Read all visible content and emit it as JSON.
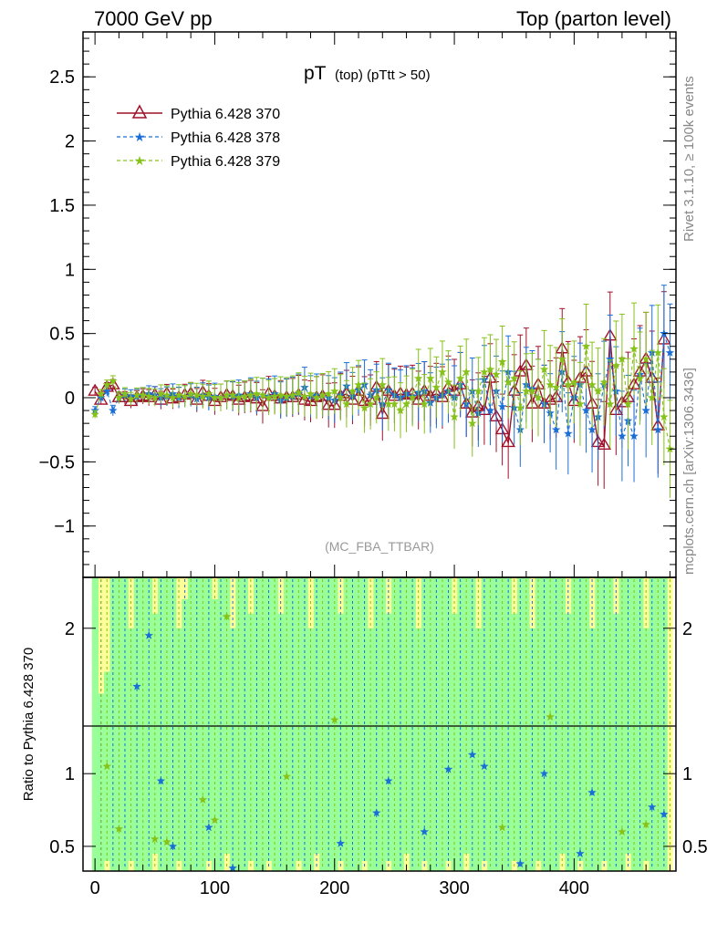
{
  "header": {
    "left": "7000 GeV pp",
    "right": "Top (parton level)"
  },
  "side_labels": {
    "upper": "Rivet 3.1.10, ≥ 100k events",
    "lower": "mcplots.cern.ch [arXiv:1306.3436]"
  },
  "chart_data": [
    {
      "type": "line",
      "panel": "main",
      "title_main": "pT",
      "title_small": "(top) (pTtt > 50)",
      "watermark": "(MC_FBA_TTBAR)",
      "ylim": [
        -1.4,
        2.85
      ],
      "xlim": [
        -10,
        485
      ],
      "yticks": [
        -1,
        -0.5,
        0,
        0.5,
        1,
        1.5,
        2,
        2.5
      ],
      "ytick_labels": [
        "−1",
        "−0.5",
        "0",
        "0.5",
        "1",
        "1.5",
        "2",
        "2.5"
      ],
      "grid": false,
      "legend_position": "top-left",
      "series": [
        {
          "name": "Pythia 6.428 370",
          "color": "#a0102a",
          "marker": "open-triangle",
          "line": "solid",
          "x": [
            0,
            5,
            10,
            15,
            20,
            25,
            30,
            35,
            40,
            45,
            50,
            55,
            60,
            65,
            70,
            75,
            80,
            85,
            90,
            95,
            100,
            105,
            110,
            115,
            120,
            125,
            130,
            135,
            140,
            145,
            150,
            155,
            160,
            165,
            170,
            175,
            180,
            185,
            190,
            195,
            200,
            205,
            210,
            215,
            220,
            225,
            230,
            235,
            240,
            245,
            250,
            255,
            260,
            265,
            270,
            275,
            280,
            285,
            290,
            295,
            300,
            305,
            310,
            315,
            320,
            325,
            330,
            335,
            340,
            345,
            350,
            355,
            360,
            365,
            370,
            375,
            380,
            385,
            390,
            395,
            400,
            405,
            410,
            415,
            420,
            425,
            430,
            435,
            440,
            445,
            450,
            455,
            460,
            465,
            470,
            475
          ],
          "y": [
            0.05,
            -0.02,
            0.08,
            0.1,
            0,
            0,
            -0.03,
            0,
            0.01,
            0,
            0.02,
            -0.02,
            0.03,
            -0.01,
            0,
            0.02,
            0.03,
            -0.02,
            0.04,
            0.01,
            -0.03,
            0,
            0.02,
            0.01,
            -0.02,
            0,
            0.01,
            -0.01,
            -0.07,
            0.03,
            0.01,
            -0.01,
            0,
            0,
            0.02,
            -0.02,
            -0.03,
            0,
            0.01,
            -0.06,
            -0.06,
            0.01,
            0.03,
            -0.02,
            0.05,
            -0.03,
            -0.02,
            0.08,
            -0.13,
            0.05,
            0.01,
            0.03,
            0.02,
            0.03,
            -0.02,
            0.05,
            0.01,
            0.03,
            0,
            0.08,
            0.05,
            0.1,
            -0.05,
            -0.12,
            -0.07,
            -0.1,
            0.15,
            -0.15,
            -0.25,
            -0.35,
            0.05,
            0.2,
            0.25,
            -0.05,
            0.1,
            -0.05,
            -0.02,
            0,
            0.38,
            0.12,
            -0.03,
            0.15,
            0.2,
            -0.05,
            -0.35,
            -0.37,
            0.48,
            -0.1,
            -0.04,
            0,
            0.1,
            0.2,
            0.3,
            0.15,
            -0.22,
            0.45
          ]
        },
        {
          "name": "Pythia 6.428 378",
          "color": "#1a6fd6",
          "marker": "star",
          "line": "dashed",
          "x": [
            0,
            5,
            10,
            15,
            20,
            25,
            30,
            35,
            40,
            45,
            50,
            55,
            60,
            65,
            70,
            75,
            80,
            85,
            90,
            95,
            100,
            105,
            110,
            115,
            120,
            125,
            130,
            135,
            140,
            145,
            150,
            155,
            160,
            165,
            170,
            175,
            180,
            185,
            190,
            195,
            200,
            205,
            210,
            215,
            220,
            225,
            230,
            235,
            240,
            245,
            250,
            255,
            260,
            265,
            270,
            275,
            280,
            285,
            290,
            295,
            300,
            305,
            310,
            315,
            320,
            325,
            330,
            335,
            340,
            345,
            350,
            355,
            360,
            365,
            370,
            375,
            380,
            385,
            390,
            395,
            400,
            405,
            410,
            415,
            420,
            425,
            430,
            435,
            440,
            445,
            450,
            455,
            460,
            465,
            470,
            475,
            480
          ],
          "y": [
            -0.1,
            0,
            0.05,
            -0.1,
            0,
            0.02,
            0.01,
            0.01,
            0.02,
            0.03,
            0.02,
            0,
            0.01,
            0.03,
            0,
            0.01,
            0.02,
            -0.01,
            0.02,
            0,
            0.01,
            0,
            0.02,
            0.01,
            0.02,
            0.01,
            0.03,
            0,
            0.02,
            0.01,
            0.03,
            -0.02,
            0,
            0.01,
            0.03,
            0.08,
            0.01,
            0.02,
            0.02,
            0,
            -0.02,
            0.02,
            0.09,
            0.01,
            0.06,
            0.1,
            0.02,
            0.06,
            -0.05,
            0.06,
            0.02,
            0,
            0.03,
            0.01,
            0.04,
            0.05,
            -0.04,
            0,
            0.02,
            0.05,
            0,
            0.1,
            -0.05,
            0.05,
            -0.12,
            0.14,
            -0.1,
            0.05,
            -0.07,
            0.2,
            -0.08,
            -0.25,
            0.1,
            0.07,
            0,
            -0.05,
            -0.12,
            -0.25,
            0.2,
            -0.28,
            0,
            0.1,
            -0.1,
            -0.25,
            -0.15,
            0.1,
            0.3,
            0.05,
            -0.3,
            -0.18,
            -0.3,
            0.18,
            -0.1,
            0.35,
            -0.25,
            0.5,
            0.35
          ]
        },
        {
          "name": "Pythia 6.428 379",
          "color": "#86c21a",
          "marker": "star",
          "line": "dashed",
          "x": [
            0,
            5,
            10,
            15,
            20,
            25,
            30,
            35,
            40,
            45,
            50,
            55,
            60,
            65,
            70,
            75,
            80,
            85,
            90,
            95,
            100,
            105,
            110,
            115,
            120,
            125,
            130,
            135,
            140,
            145,
            150,
            155,
            160,
            165,
            170,
            175,
            180,
            185,
            190,
            195,
            200,
            205,
            210,
            215,
            220,
            225,
            230,
            235,
            240,
            245,
            250,
            255,
            260,
            265,
            270,
            275,
            280,
            285,
            290,
            295,
            300,
            305,
            310,
            315,
            320,
            325,
            330,
            335,
            340,
            345,
            350,
            355,
            360,
            365,
            370,
            375,
            380,
            385,
            390,
            395,
            400,
            405,
            410,
            415,
            420,
            425,
            430,
            435,
            440,
            445,
            450,
            455,
            460,
            465,
            470,
            475,
            480
          ],
          "y": [
            -0.13,
            0.03,
            0.1,
            0.13,
            0,
            0.03,
            -0.01,
            0.02,
            0.02,
            0.01,
            0,
            0.03,
            0.02,
            0,
            0.02,
            0.01,
            0.03,
            0.02,
            0.01,
            0.03,
            0,
            0,
            0.02,
            0.02,
            0,
            0.01,
            0.02,
            0.03,
            0.02,
            0,
            0.01,
            0.02,
            0.01,
            0.02,
            0.04,
            0.01,
            0.03,
            0,
            0.02,
            0.03,
            0.05,
            0,
            -0.05,
            0.05,
            0.1,
            -0.08,
            -0.05,
            0,
            0.1,
            -0.05,
            -0.05,
            -0.1,
            -0.05,
            0,
            0.15,
            -0.05,
            0.15,
            0.08,
            0.2,
            0.12,
            -0.15,
            0.15,
            0.2,
            -0.2,
            0.05,
            0.2,
            0.22,
            0.18,
            0.28,
            0.12,
            0.15,
            -0.08,
            0.05,
            0.05,
            0,
            0.22,
            0.1,
            0.08,
            0.3,
            0.1,
            0.12,
            -0.05,
            0.4,
            0.1,
            0.05,
            0.12,
            -0.05,
            0.25,
            0.3,
            -0.05,
            0.38,
            0.15,
            0.3,
            0,
            0.35,
            -0.15,
            -0.4
          ]
        }
      ]
    },
    {
      "type": "line",
      "panel": "ratio",
      "ylabel": "Ratio to Pythia 6.428 370",
      "ylim": [
        0.33,
        2.35
      ],
      "yticks": [
        0.5,
        1,
        2
      ],
      "ytick_labels": [
        "0.5",
        "1",
        "2"
      ],
      "xticks": [
        0,
        100,
        200,
        300,
        400
      ],
      "xtick_labels": [
        "0",
        "100",
        "200",
        "300",
        "400"
      ],
      "band_colors": {
        "outer": "#ffff99",
        "inner": "#99ff99"
      },
      "inner_band_upper": [
        2.35,
        1.55,
        1.7,
        2.35,
        2.35,
        2.35,
        2.0,
        2.35,
        2.35,
        2.35,
        2.1,
        2.35,
        2.35,
        2.35,
        2.0,
        2.2,
        2.35,
        2.35,
        2.35,
        2.35,
        2.2,
        2.35,
        2.35,
        2.0,
        2.35,
        2.35,
        2.1,
        2.35,
        2.35,
        2.35,
        2.35,
        2.1,
        2.35,
        2.35,
        2.35,
        2.35,
        2.0,
        2.35,
        2.35,
        2.35,
        2.35,
        2.1,
        2.35,
        2.35,
        2.35,
        2.35,
        2.0,
        2.35,
        2.35,
        2.1,
        2.35,
        2.35,
        2.35,
        2.35,
        2.0,
        2.35,
        2.35,
        2.35,
        2.35,
        2.35,
        2.1,
        2.35,
        2.35,
        2.35,
        2.0,
        2.35,
        2.35,
        2.35,
        2.35,
        2.35,
        2.1,
        2.35,
        2.35,
        2.0,
        2.35,
        2.35,
        2.35,
        2.35,
        2.35,
        2.1,
        2.35,
        2.35,
        2.35,
        2.0,
        2.35,
        2.35,
        2.35,
        2.1,
        2.35,
        2.35,
        2.35,
        2.35,
        2.0,
        2.35,
        2.35,
        2.35
      ],
      "inner_band_lower": [
        0.33,
        0.33,
        0.4,
        0.33,
        0.33,
        0.33,
        0.4,
        0.33,
        0.33,
        0.33,
        0.45,
        0.33,
        0.33,
        0.33,
        0.4,
        0.33,
        0.33,
        0.33,
        0.33,
        0.4,
        0.33,
        0.33,
        0.45,
        0.33,
        0.33,
        0.33,
        0.4,
        0.33,
        0.33,
        0.4,
        0.33,
        0.33,
        0.33,
        0.33,
        0.4,
        0.33,
        0.33,
        0.45,
        0.33,
        0.33,
        0.33,
        0.4,
        0.33,
        0.33,
        0.33,
        0.4,
        0.33,
        0.33,
        0.33,
        0.4,
        0.33,
        0.33,
        0.45,
        0.33,
        0.33,
        0.4,
        0.33,
        0.33,
        0.33,
        0.4,
        0.33,
        0.33,
        0.45,
        0.33,
        0.33,
        0.4,
        0.33,
        0.33,
        0.33,
        0.33,
        0.4,
        0.33,
        0.33,
        0.33,
        0.4,
        0.33,
        0.33,
        0.33,
        0.45,
        0.33,
        0.33,
        0.4,
        0.33,
        0.33,
        0.33,
        0.4,
        0.33,
        0.33,
        0.33,
        0.45,
        0.33,
        0.33,
        0.4,
        0.33,
        0.33,
        0.33
      ],
      "series": [
        {
          "name": "Pythia 6.428 378",
          "color": "#1a6fd6",
          "marker": "star",
          "x": [
            5,
            15,
            25,
            35,
            45,
            55,
            65,
            75,
            85,
            95,
            105,
            115,
            125,
            135,
            145,
            155,
            165,
            175,
            185,
            195,
            205,
            215,
            225,
            235,
            245,
            255,
            265,
            275,
            285,
            295,
            305,
            315,
            325,
            335,
            345,
            355,
            365,
            375,
            385,
            395,
            405,
            415,
            425,
            435,
            445,
            455,
            465,
            475
          ],
          "y": [
            2.35,
            0.3,
            2.35,
            1.6,
            1.95,
            0.95,
            0.5,
            2.35,
            0.3,
            0.63,
            2.35,
            0.35,
            2.35,
            0.3,
            2.35,
            0.3,
            2.35,
            0.3,
            2.35,
            0.3,
            0.52,
            2.35,
            0.3,
            0.73,
            0.95,
            2.35,
            0.3,
            0.6,
            0.3,
            1.03,
            2.35,
            1.13,
            1.05,
            2.35,
            0.3,
            0.38,
            2.35,
            1.0,
            2.35,
            0.3,
            0.45,
            0.87,
            2.35,
            0.3,
            0.3,
            2.35,
            0.77,
            0.72
          ]
        },
        {
          "name": "Pythia 6.428 379",
          "color": "#86c21a",
          "marker": "star",
          "x": [
            5,
            10,
            20,
            30,
            40,
            50,
            60,
            70,
            80,
            90,
            100,
            110,
            120,
            130,
            140,
            150,
            160,
            170,
            180,
            190,
            200,
            210,
            220,
            230,
            240,
            250,
            260,
            270,
            280,
            290,
            300,
            310,
            320,
            330,
            340,
            350,
            360,
            370,
            380,
            390,
            400,
            410,
            420,
            430,
            440,
            450,
            460,
            470,
            480
          ],
          "y": [
            0.3,
            1.05,
            0.62,
            2.35,
            0.3,
            0.55,
            0.53,
            2.35,
            0.3,
            0.82,
            0.68,
            2.08,
            0.3,
            2.35,
            0.3,
            2.35,
            0.98,
            2.35,
            0.3,
            2.35,
            1.37,
            0.3,
            2.35,
            0.3,
            2.35,
            0.3,
            2.35,
            0.3,
            2.35,
            0.3,
            2.35,
            0.3,
            2.35,
            0.3,
            0.63,
            2.35,
            0.3,
            2.35,
            1.39,
            0.3,
            2.35,
            0.3,
            2.35,
            0.3,
            0.6,
            2.35,
            0.65,
            2.35,
            0.3
          ]
        }
      ]
    }
  ]
}
